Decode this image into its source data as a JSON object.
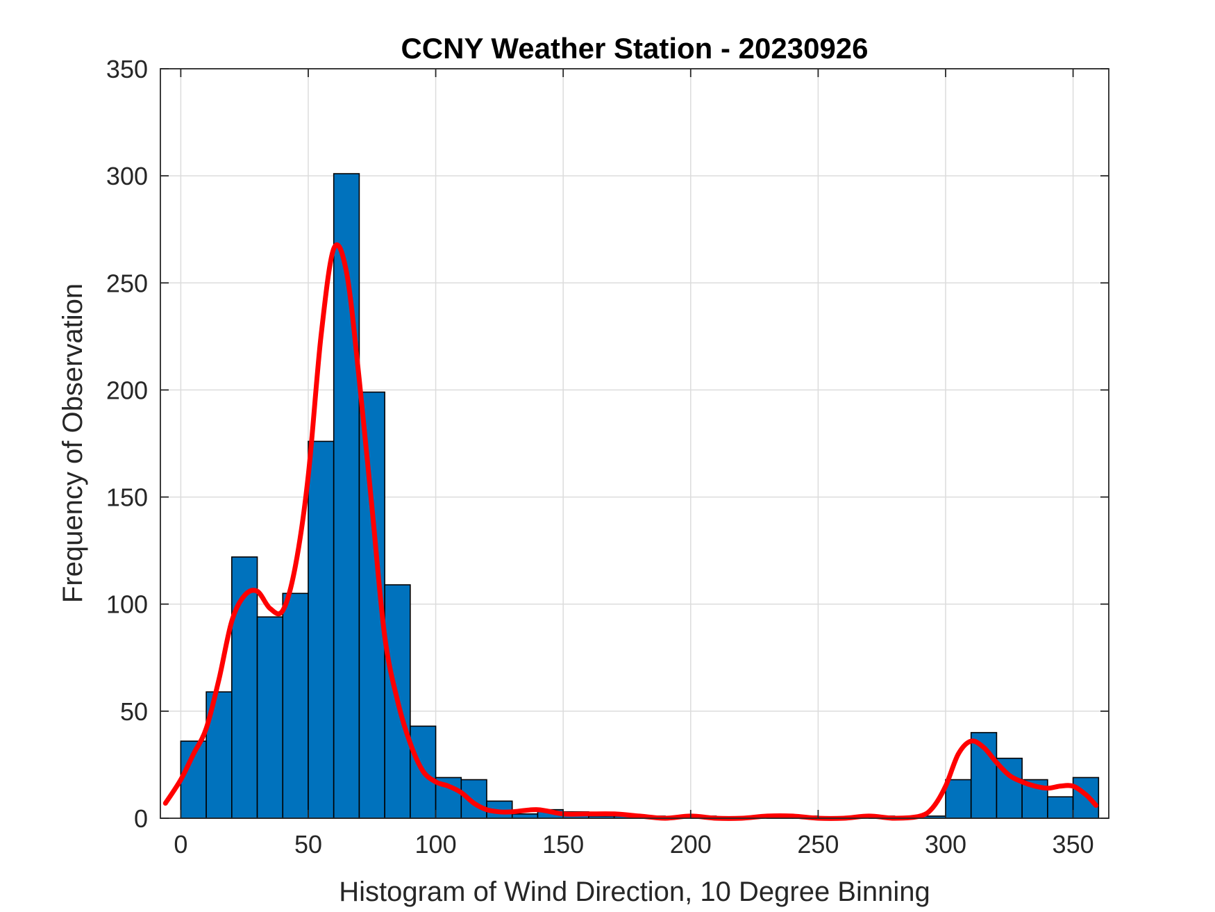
{
  "chart_data": {
    "type": "bar",
    "title": "CCNY Weather Station - 20230926",
    "xlabel": "Histogram of Wind Direction, 10 Degree Binning",
    "ylabel": "Frequency of Observation",
    "xlim": [
      -8,
      364
    ],
    "ylim": [
      0,
      350
    ],
    "xticks": [
      0,
      50,
      100,
      150,
      200,
      250,
      300,
      350
    ],
    "yticks": [
      0,
      50,
      100,
      150,
      200,
      250,
      300,
      350
    ],
    "grid": true,
    "bin_width": 10,
    "bins": [
      {
        "x0": 0,
        "value": 36
      },
      {
        "x0": 10,
        "value": 59
      },
      {
        "x0": 20,
        "value": 122
      },
      {
        "x0": 30,
        "value": 94
      },
      {
        "x0": 40,
        "value": 105
      },
      {
        "x0": 50,
        "value": 176
      },
      {
        "x0": 60,
        "value": 301
      },
      {
        "x0": 70,
        "value": 199
      },
      {
        "x0": 80,
        "value": 109
      },
      {
        "x0": 90,
        "value": 43
      },
      {
        "x0": 100,
        "value": 19
      },
      {
        "x0": 110,
        "value": 18
      },
      {
        "x0": 120,
        "value": 8
      },
      {
        "x0": 130,
        "value": 2
      },
      {
        "x0": 140,
        "value": 4
      },
      {
        "x0": 150,
        "value": 3
      },
      {
        "x0": 160,
        "value": 1
      },
      {
        "x0": 170,
        "value": 1
      },
      {
        "x0": 180,
        "value": 1
      },
      {
        "x0": 190,
        "value": 0
      },
      {
        "x0": 200,
        "value": 1
      },
      {
        "x0": 210,
        "value": 0
      },
      {
        "x0": 220,
        "value": 0
      },
      {
        "x0": 230,
        "value": 1
      },
      {
        "x0": 240,
        "value": 1
      },
      {
        "x0": 250,
        "value": 0
      },
      {
        "x0": 260,
        "value": 0
      },
      {
        "x0": 270,
        "value": 1
      },
      {
        "x0": 280,
        "value": 0
      },
      {
        "x0": 290,
        "value": 1
      },
      {
        "x0": 300,
        "value": 18
      },
      {
        "x0": 310,
        "value": 40
      },
      {
        "x0": 320,
        "value": 28
      },
      {
        "x0": 330,
        "value": 18
      },
      {
        "x0": 340,
        "value": 10
      },
      {
        "x0": 350,
        "value": 19
      }
    ],
    "density_curve": {
      "color": "#ff0000",
      "x": [
        -6,
        0,
        5,
        10,
        15,
        20,
        25,
        30,
        35,
        40,
        45,
        50,
        55,
        60,
        65,
        70,
        75,
        80,
        85,
        90,
        95,
        100,
        105,
        110,
        115,
        120,
        125,
        130,
        140,
        150,
        160,
        170,
        180,
        190,
        200,
        210,
        220,
        230,
        240,
        250,
        260,
        270,
        280,
        290,
        295,
        300,
        305,
        310,
        315,
        320,
        325,
        330,
        335,
        340,
        345,
        350,
        355,
        359
      ],
      "y": [
        7,
        18,
        30,
        42,
        65,
        92,
        104,
        106,
        98,
        97,
        118,
        160,
        225,
        266,
        255,
        205,
        145,
        85,
        55,
        35,
        22,
        17,
        15,
        12,
        7,
        4,
        3,
        3,
        4,
        2,
        2,
        2,
        1,
        0,
        1,
        0,
        0,
        1,
        1,
        0,
        0,
        1,
        0,
        1,
        5,
        15,
        30,
        36,
        33,
        26,
        20,
        17,
        15,
        14,
        15,
        15,
        11,
        6
      ]
    },
    "bar_color": "#0072bd",
    "bar_edge_color": "#000000"
  }
}
